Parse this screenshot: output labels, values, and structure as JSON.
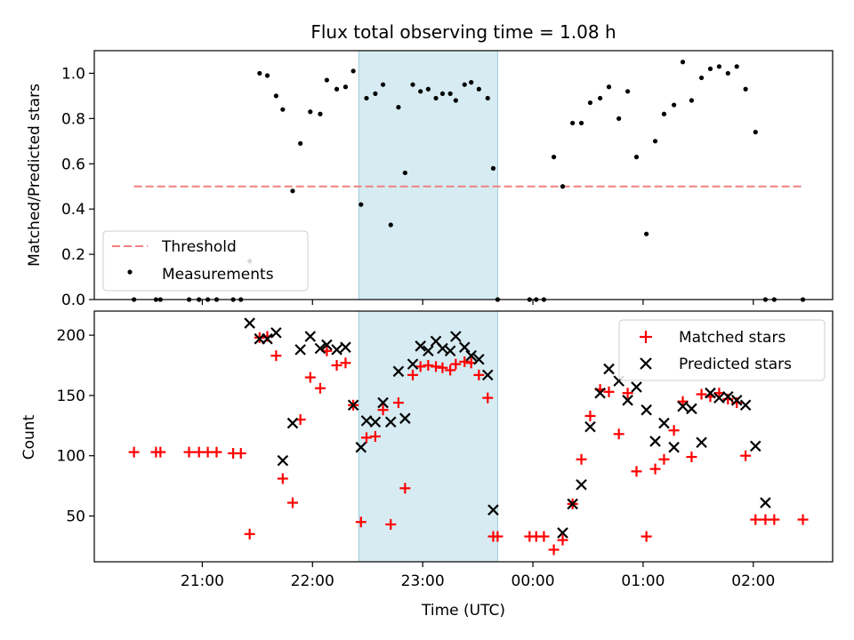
{
  "title": "Flux total observing time = 1.08 h",
  "colors": {
    "measurement": "#000000",
    "threshold": "#f08080",
    "matched": "#ff0000",
    "predicted": "#000000",
    "highlight_fill": "#add8e6"
  },
  "chart_data": [
    {
      "type": "scatter",
      "panel": "top",
      "title": "Flux total observing time = 1.08 h",
      "xlabel": "",
      "ylabel": "Matched/Predicted stars",
      "x_unit": "time (UTC, hours since 00:00; negative = previous day)",
      "xlim": [
        -3.98,
        2.72
      ],
      "ylim": [
        0,
        1.1
      ],
      "yticks": [
        0.0,
        0.2,
        0.4,
        0.6,
        0.8,
        1.0
      ],
      "ytick_labels": [
        "0.0",
        "0.2",
        "0.4",
        "0.6",
        "0.8",
        "1.0"
      ],
      "highlight_interval": [
        -1.58,
        -0.32
      ],
      "legend": {
        "position": "lower-left",
        "entries": [
          "Threshold",
          "Measurements"
        ]
      },
      "series": [
        {
          "name": "Threshold",
          "kind": "dashed-line",
          "x": [
            -3.62,
            2.45
          ],
          "y": [
            0.5,
            0.5
          ]
        },
        {
          "name": "Measurements",
          "kind": "dots",
          "x": [
            -3.62,
            -3.42,
            -3.38,
            -3.12,
            -3.03,
            -2.95,
            -2.87,
            -2.72,
            -2.65,
            -2.57,
            -2.48,
            -2.41,
            -2.33,
            -2.27,
            -2.18,
            -2.11,
            -2.02,
            -1.93,
            -1.87,
            -1.78,
            -1.7,
            -1.63,
            -1.56,
            -1.51,
            -1.43,
            -1.36,
            -1.29,
            -1.22,
            -1.16,
            -1.09,
            -1.02,
            -0.95,
            -0.88,
            -0.82,
            -0.75,
            -0.7,
            -0.62,
            -0.56,
            -0.49,
            -0.41,
            -0.36,
            -0.32,
            -0.03,
            0.03,
            0.1,
            0.19,
            0.27,
            0.36,
            0.44,
            0.52,
            0.61,
            0.69,
            0.78,
            0.86,
            0.94,
            1.03,
            1.11,
            1.19,
            1.28,
            1.36,
            1.44,
            1.53,
            1.61,
            1.69,
            1.77,
            1.85,
            1.93,
            2.02,
            2.11,
            2.19,
            2.45
          ],
          "y": [
            0.0,
            0.0,
            0.0,
            0.0,
            0.0,
            0.0,
            0.0,
            0.0,
            0.0,
            0.17,
            1.0,
            0.99,
            0.9,
            0.84,
            0.48,
            0.69,
            0.83,
            0.82,
            0.97,
            0.93,
            0.94,
            1.01,
            0.42,
            0.89,
            0.91,
            0.95,
            0.33,
            0.85,
            0.56,
            0.95,
            0.92,
            0.93,
            0.89,
            0.91,
            0.91,
            0.88,
            0.95,
            0.96,
            0.93,
            0.89,
            0.58,
            0.0,
            0.0,
            0.0,
            0.0,
            0.63,
            0.5,
            0.78,
            0.78,
            0.87,
            0.89,
            0.94,
            0.8,
            0.92,
            0.63,
            0.29,
            0.7,
            0.82,
            0.86,
            1.05,
            0.88,
            0.98,
            1.02,
            1.03,
            1.0,
            1.03,
            0.93,
            0.74,
            0.0,
            0.0,
            0.0
          ]
        }
      ]
    },
    {
      "type": "scatter",
      "panel": "bottom",
      "xlabel": "Time (UTC)",
      "ylabel": "Count",
      "x_unit": "time (UTC, hours since 00:00; negative = previous day)",
      "xlim": [
        -3.98,
        2.72
      ],
      "ylim": [
        12,
        220
      ],
      "xticks": [
        -3,
        -2,
        -1,
        0,
        1,
        2
      ],
      "xtick_labels": [
        "21:00",
        "22:00",
        "23:00",
        "00:00",
        "01:00",
        "02:00"
      ],
      "yticks": [
        50,
        100,
        150,
        200
      ],
      "ytick_labels": [
        "50",
        "100",
        "150",
        "200"
      ],
      "highlight_interval": [
        -1.58,
        -0.32
      ],
      "legend": {
        "position": "top-right",
        "entries": [
          "Matched stars",
          "Predicted stars"
        ]
      },
      "series": [
        {
          "name": "Matched stars",
          "marker": "plus",
          "x": [
            -3.62,
            -3.42,
            -3.38,
            -3.12,
            -3.03,
            -2.95,
            -2.87,
            -2.72,
            -2.65,
            -2.57,
            -2.48,
            -2.41,
            -2.33,
            -2.27,
            -2.18,
            -2.11,
            -2.02,
            -1.93,
            -1.87,
            -1.78,
            -1.7,
            -1.63,
            -1.56,
            -1.51,
            -1.43,
            -1.36,
            -1.29,
            -1.22,
            -1.16,
            -1.09,
            -1.02,
            -0.95,
            -0.88,
            -0.82,
            -0.75,
            -0.7,
            -0.62,
            -0.56,
            -0.49,
            -0.41,
            -0.36,
            -0.32,
            -0.03,
            0.03,
            0.1,
            0.19,
            0.27,
            0.36,
            0.44,
            0.52,
            0.61,
            0.69,
            0.78,
            0.86,
            0.94,
            1.03,
            1.11,
            1.19,
            1.28,
            1.36,
            1.44,
            1.53,
            1.61,
            1.69,
            1.77,
            1.85,
            1.93,
            2.02,
            2.11,
            2.19,
            2.45
          ],
          "y": [
            103,
            103,
            103,
            103,
            103,
            103,
            103,
            102,
            102,
            35,
            198,
            199,
            183,
            81,
            61,
            130,
            165,
            156,
            187,
            175,
            177,
            142,
            45,
            115,
            116,
            138,
            43,
            144,
            73,
            167,
            174,
            175,
            174,
            173,
            171,
            176,
            178,
            177,
            167,
            148,
            33,
            33,
            33,
            33,
            33,
            22,
            30,
            60,
            97,
            133,
            155,
            153,
            118,
            152,
            87,
            33,
            89,
            97,
            121,
            145,
            99,
            151,
            149,
            152,
            147,
            144,
            100,
            47,
            47,
            47,
            47
          ]
        },
        {
          "name": "Predicted stars",
          "marker": "x",
          "x": [
            -2.57,
            -2.48,
            -2.41,
            -2.33,
            -2.27,
            -2.18,
            -2.11,
            -2.02,
            -1.93,
            -1.87,
            -1.78,
            -1.7,
            -1.63,
            -1.56,
            -1.51,
            -1.43,
            -1.36,
            -1.29,
            -1.22,
            -1.16,
            -1.09,
            -1.02,
            -0.95,
            -0.88,
            -0.82,
            -0.75,
            -0.7,
            -0.62,
            -0.56,
            -0.49,
            -0.41,
            -0.36,
            0.27,
            0.36,
            0.44,
            0.52,
            0.61,
            0.69,
            0.78,
            0.86,
            0.94,
            1.03,
            1.11,
            1.19,
            1.28,
            1.36,
            1.44,
            1.53,
            1.61,
            1.69,
            1.77,
            1.85,
            1.93,
            2.02,
            2.11
          ],
          "y": [
            210,
            197,
            197,
            202,
            96,
            127,
            188,
            199,
            189,
            192,
            188,
            190,
            142,
            107,
            129,
            128,
            144,
            128,
            170,
            131,
            176,
            191,
            187,
            195,
            189,
            187,
            199,
            190,
            183,
            180,
            167,
            55,
            36,
            60,
            76,
            124,
            152,
            172,
            162,
            146,
            157,
            138,
            112,
            127,
            107,
            141,
            139,
            111,
            152,
            148,
            149,
            146,
            142,
            108,
            61
          ]
        }
      ]
    }
  ]
}
